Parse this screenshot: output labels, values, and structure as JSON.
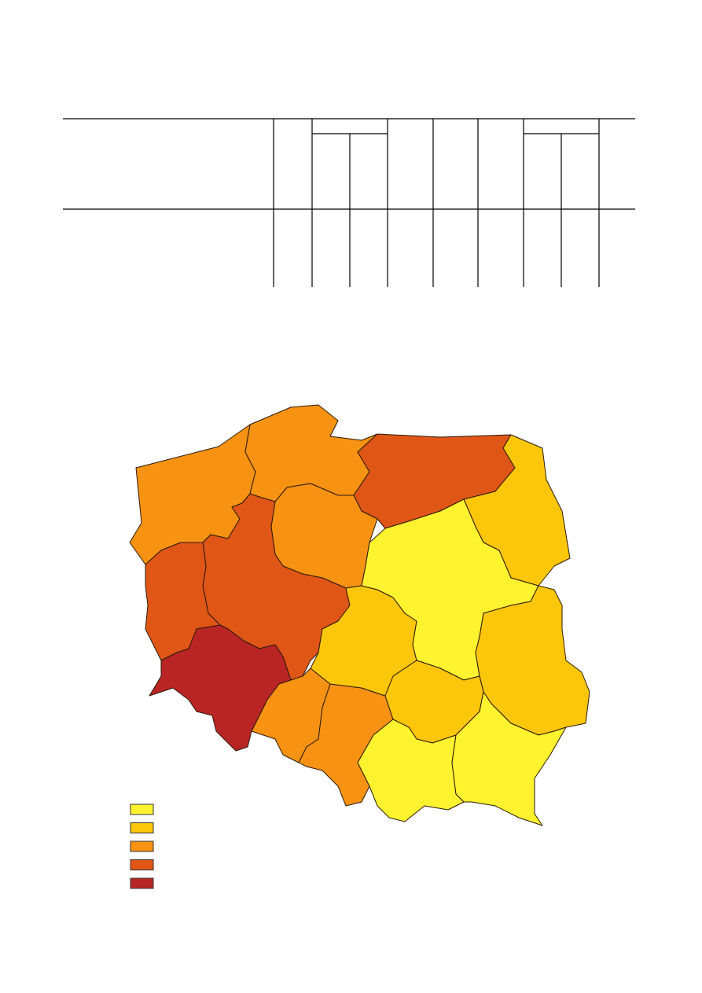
{
  "legend": {
    "classes": [
      {
        "color": "#fff22e"
      },
      {
        "color": "#fcc60a"
      },
      {
        "color": "#f79213"
      },
      {
        "color": "#e05616"
      },
      {
        "color": "#b92524"
      }
    ]
  },
  "map": {
    "regions": [
      {
        "id": "zachodniopomorskie",
        "class": 2
      },
      {
        "id": "pomorskie",
        "class": 2
      },
      {
        "id": "warminsko-mazurskie",
        "class": 3
      },
      {
        "id": "podlaskie",
        "class": 1
      },
      {
        "id": "kujawsko-pomorskie",
        "class": 2
      },
      {
        "id": "wielkopolskie",
        "class": 3
      },
      {
        "id": "lubuskie",
        "class": 3
      },
      {
        "id": "dolnoslaskie",
        "class": 4
      },
      {
        "id": "opolskie",
        "class": 2
      },
      {
        "id": "slaskie",
        "class": 2
      },
      {
        "id": "lodzkie",
        "class": 1
      },
      {
        "id": "mazowieckie",
        "class": 0
      },
      {
        "id": "lubelskie",
        "class": 1
      },
      {
        "id": "swietokrzyskie",
        "class": 1
      },
      {
        "id": "malopolskie",
        "class": 0
      },
      {
        "id": "podkarpackie",
        "class": 0
      }
    ]
  }
}
